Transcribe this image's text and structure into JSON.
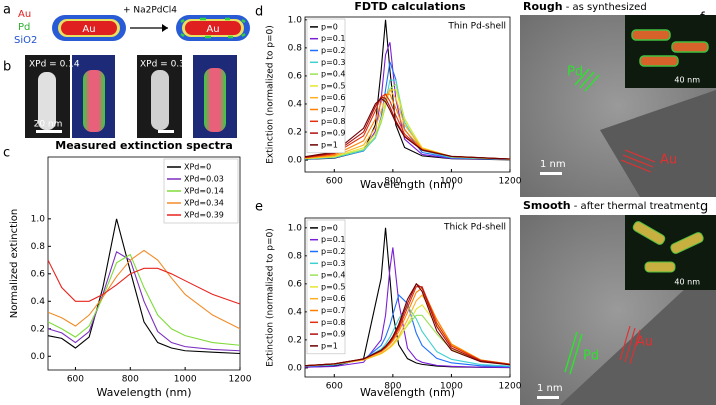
{
  "panel_labels": [
    "a",
    "b",
    "c",
    "d",
    "e",
    "f",
    "g"
  ],
  "schematic": {
    "legend": [
      "Au",
      "Pd",
      "SiO2"
    ],
    "reagent": "+ Na2PdCl4",
    "core_label": "Au"
  },
  "micrographs_b": {
    "composition": [
      "XPd = 0.14",
      "XPd = 0.39"
    ],
    "scale": "20 nm"
  },
  "fdtd_title": "FDTD calculations",
  "tem": [
    {
      "heading_bold": "Rough",
      "heading": " - as synthesized",
      "pd": "Pd",
      "au": "Au",
      "scale": "1 nm",
      "inset_scale": "40 nm"
    },
    {
      "heading_bold": "Smooth",
      "heading": " - after thermal treatment",
      "pd": "Pd",
      "au": "Au",
      "scale": "1 nm",
      "inset_scale": "40 nm"
    }
  ],
  "chart_data": [
    {
      "type": "line",
      "title": "Measured extinction spectra",
      "x_label": "Wavelength (nm)",
      "y_label": "Normalized extinction",
      "x": [
        500,
        550,
        600,
        650,
        700,
        750,
        800,
        850,
        900,
        950,
        1000,
        1100,
        1200
      ],
      "xlim": [
        500,
        1200
      ],
      "xticks": [
        600,
        800,
        1000,
        1200
      ],
      "ylim": [
        -0.1,
        1.45
      ],
      "yticks": [
        {
          "value": 0,
          "label": "0.0"
        },
        0.2,
        0.4,
        0.6,
        0.8,
        {
          "value": 1,
          "label": "1.0"
        }
      ],
      "legend": "upper right",
      "series": [
        {
          "name": "XPd=0",
          "color": "#000000",
          "values": [
            0.15,
            0.13,
            0.06,
            0.14,
            0.5,
            1.0,
            0.62,
            0.25,
            0.1,
            0.06,
            0.04,
            0.03,
            0.02
          ]
        },
        {
          "name": "XPd=0.03",
          "color": "#7b2fbe",
          "values": [
            0.2,
            0.17,
            0.1,
            0.18,
            0.45,
            0.76,
            0.7,
            0.4,
            0.18,
            0.1,
            0.07,
            0.05,
            0.04
          ]
        },
        {
          "name": "XPd=0.14",
          "color": "#7fdc3b",
          "values": [
            0.25,
            0.2,
            0.14,
            0.22,
            0.43,
            0.68,
            0.74,
            0.5,
            0.3,
            0.2,
            0.15,
            0.1,
            0.08
          ]
        },
        {
          "name": "XPd=0.34",
          "color": "#f28c28",
          "values": [
            0.32,
            0.28,
            0.22,
            0.3,
            0.43,
            0.58,
            0.7,
            0.77,
            0.7,
            0.57,
            0.45,
            0.3,
            0.2
          ]
        },
        {
          "name": "XPd=0.39",
          "color": "#e8231e",
          "values": [
            0.7,
            0.5,
            0.4,
            0.4,
            0.45,
            0.52,
            0.6,
            0.64,
            0.64,
            0.6,
            0.55,
            0.45,
            0.38
          ]
        }
      ]
    },
    {
      "type": "line",
      "annotation": "Thin Pd-shell",
      "x_label": "Wavelength (nm)",
      "y_label": "Extinction (normalized to p=0)",
      "x": [
        500,
        600,
        700,
        740,
        760,
        775,
        790,
        810,
        840,
        900,
        1000,
        1200
      ],
      "xlim": [
        500,
        1200
      ],
      "xticks": [
        600,
        800,
        1000,
        1200
      ],
      "ylim": [
        -0.085,
        1.02
      ],
      "yticks": [
        {
          "value": 0,
          "label": "0.0"
        },
        0.2,
        0.4,
        0.6,
        0.8,
        {
          "value": 1,
          "label": "1.0"
        }
      ],
      "legend": "upper left",
      "series": [
        {
          "name": "p=0",
          "color": "#000000",
          "values": [
            0.005,
            0.013,
            0.066,
            0.25,
            0.64,
            1.0,
            0.64,
            0.25,
            0.09,
            0.03,
            0.01,
            0.002
          ]
        },
        {
          "name": "p=0.1",
          "color": "#7b1fd6",
          "values": [
            0.007,
            0.016,
            0.069,
            0.205,
            0.435,
            0.75,
            0.84,
            0.435,
            0.149,
            0.04,
            0.012,
            0.004
          ]
        },
        {
          "name": "p=0.2",
          "color": "#1f6fff",
          "values": [
            0.007,
            0.017,
            0.065,
            0.165,
            0.305,
            0.5,
            0.7,
            0.576,
            0.22,
            0.054,
            0.015,
            0.004
          ]
        },
        {
          "name": "p=0.3",
          "color": "#40d0d0",
          "values": [
            0.008,
            0.018,
            0.068,
            0.157,
            0.27,
            0.41,
            0.57,
            0.57,
            0.27,
            0.068,
            0.018,
            0.005
          ]
        },
        {
          "name": "p=0.4",
          "color": "#9be35a",
          "values": [
            0.01,
            0.021,
            0.075,
            0.165,
            0.267,
            0.384,
            0.51,
            0.54,
            0.295,
            0.08,
            0.022,
            0.006
          ]
        },
        {
          "name": "p=0.5",
          "color": "#e6e630",
          "values": [
            0.012,
            0.025,
            0.088,
            0.187,
            0.29,
            0.4,
            0.5,
            0.5,
            0.29,
            0.088,
            0.025,
            0.007
          ]
        },
        {
          "name": "p=0.6",
          "color": "#ffb020",
          "values": [
            0.013,
            0.029,
            0.107,
            0.23,
            0.35,
            0.44,
            0.5,
            0.44,
            0.25,
            0.083,
            0.025,
            0.007
          ]
        },
        {
          "name": "p=0.7",
          "color": "#ff7f00",
          "values": [
            0.016,
            0.036,
            0.137,
            0.29,
            0.41,
            0.47,
            0.47,
            0.37,
            0.214,
            0.078,
            0.026,
            0.007
          ]
        },
        {
          "name": "p=0.8",
          "color": "#e03010",
          "values": [
            0.018,
            0.044,
            0.173,
            0.35,
            0.45,
            0.47,
            0.42,
            0.32,
            0.186,
            0.073,
            0.026,
            0.007
          ]
        },
        {
          "name": "p=0.9",
          "color": "#b01010",
          "values": [
            0.02,
            0.05,
            0.2,
            0.38,
            0.45,
            0.44,
            0.38,
            0.28,
            0.17,
            0.07,
            0.026,
            0.007
          ]
        },
        {
          "name": "p=1",
          "color": "#6b0000",
          "values": [
            0.024,
            0.057,
            0.227,
            0.4,
            0.44,
            0.415,
            0.357,
            0.267,
            0.165,
            0.072,
            0.027,
            0.008
          ]
        }
      ]
    },
    {
      "type": "line",
      "annotation": "Thick Pd-shell",
      "x_label": "Wavelength (nm)",
      "y_label": "Extinction (normalized to p=0)",
      "x": [
        500,
        600,
        700,
        760,
        775,
        790,
        800,
        820,
        850,
        880,
        900,
        950,
        1000,
        1100,
        1200
      ],
      "xlim": [
        500,
        1200
      ],
      "xticks": [
        600,
        800,
        1000,
        1200
      ],
      "ylim": [
        -0.065,
        1.07
      ],
      "yticks": [
        {
          "value": 0,
          "label": "0.0"
        },
        0.2,
        0.4,
        0.6,
        0.8,
        {
          "value": 1,
          "label": "1.0"
        }
      ],
      "legend": "upper left",
      "series": [
        {
          "name": "p=0",
          "color": "#000000",
          "values": [
            0.005,
            0.013,
            0.066,
            0.64,
            1.0,
            0.64,
            0.39,
            0.165,
            0.066,
            0.035,
            0.025,
            0.013,
            0.008,
            0.004,
            0.002
          ]
        },
        {
          "name": "p=0.1",
          "color": "#7b1fd6",
          "values": [
            0.005,
            0.01,
            0.04,
            0.2,
            0.375,
            0.71,
            0.86,
            0.47,
            0.14,
            0.06,
            0.04,
            0.018,
            0.011,
            0.005,
            0.003
          ]
        },
        {
          "name": "p=0.2",
          "color": "#1f6fff",
          "values": [
            0.01,
            0.02,
            0.059,
            0.16,
            0.22,
            0.307,
            0.38,
            0.52,
            0.46,
            0.247,
            0.16,
            0.068,
            0.036,
            0.015,
            0.008
          ]
        },
        {
          "name": "p=0.3",
          "color": "#40d0d0",
          "values": [
            0.013,
            0.024,
            0.061,
            0.135,
            0.17,
            0.22,
            0.26,
            0.35,
            0.44,
            0.35,
            0.26,
            0.116,
            0.061,
            0.024,
            0.013
          ]
        },
        {
          "name": "p=0.4",
          "color": "#9be35a",
          "values": [
            0.015,
            0.027,
            0.057,
            0.104,
            0.124,
            0.148,
            0.167,
            0.215,
            0.304,
            0.375,
            0.375,
            0.243,
            0.131,
            0.048,
            0.024
          ]
        },
        {
          "name": "p=0.5",
          "color": "#e6e630",
          "values": [
            0.015,
            0.026,
            0.056,
            0.1,
            0.12,
            0.143,
            0.162,
            0.21,
            0.31,
            0.42,
            0.45,
            0.31,
            0.162,
            0.056,
            0.026
          ]
        },
        {
          "name": "p=0.6",
          "color": "#ffb020",
          "values": [
            0.015,
            0.027,
            0.057,
            0.104,
            0.124,
            0.15,
            0.171,
            0.225,
            0.344,
            0.48,
            0.52,
            0.344,
            0.171,
            0.057,
            0.027
          ]
        },
        {
          "name": "p=0.7",
          "color": "#ff7f00",
          "values": [
            0.016,
            0.029,
            0.062,
            0.115,
            0.139,
            0.169,
            0.193,
            0.257,
            0.396,
            0.54,
            0.57,
            0.345,
            0.169,
            0.056,
            0.027
          ]
        },
        {
          "name": "p=0.8",
          "color": "#e03010",
          "values": [
            0.016,
            0.029,
            0.063,
            0.121,
            0.146,
            0.179,
            0.206,
            0.278,
            0.43,
            0.58,
            0.58,
            0.32,
            0.156,
            0.054,
            0.026
          ]
        },
        {
          "name": "p=0.9",
          "color": "#b01010",
          "values": [
            0.016,
            0.029,
            0.064,
            0.125,
            0.152,
            0.187,
            0.217,
            0.295,
            0.46,
            0.6,
            0.57,
            0.295,
            0.142,
            0.049,
            0.024
          ]
        },
        {
          "name": "p=1",
          "color": "#6b0000",
          "values": [
            0.016,
            0.028,
            0.064,
            0.126,
            0.155,
            0.193,
            0.225,
            0.31,
            0.49,
            0.6,
            0.545,
            0.264,
            0.126,
            0.044,
            0.022
          ]
        }
      ]
    }
  ]
}
